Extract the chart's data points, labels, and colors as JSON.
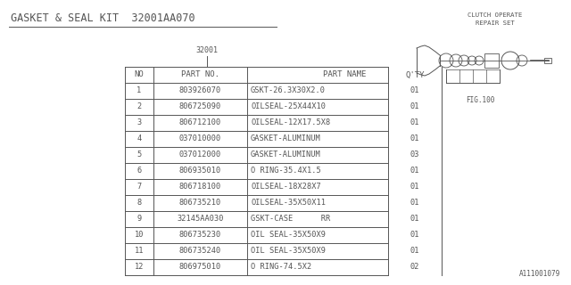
{
  "title": "GASKET & SEAL KIT  32001AA070",
  "part_number_label": "32001",
  "fig_label": "FIG.100",
  "clutch_label_line1": "CLUTCH OPERATE",
  "clutch_label_line2": "REPAIR SET",
  "footer": "A111001079",
  "bg_color": "#ffffff",
  "table_header": [
    "NO",
    "PART NO.",
    "PART NAME",
    "Q'TY"
  ],
  "table_rows": [
    [
      "1",
      "803926070",
      "GSKT-26.3X30X2.0",
      "01"
    ],
    [
      "2",
      "806725090",
      "OILSEAL-25X44X10",
      "01"
    ],
    [
      "3",
      "806712100",
      "OILSEAL-12X17.5X8",
      "01"
    ],
    [
      "4",
      "037010000",
      "GASKET-ALUMINUM",
      "01"
    ],
    [
      "5",
      "037012000",
      "GASKET-ALUMINUM",
      "03"
    ],
    [
      "6",
      "806935010",
      "O RING-35.4X1.5",
      "01"
    ],
    [
      "7",
      "806718100",
      "OILSEAL-18X28X7",
      "01"
    ],
    [
      "8",
      "806735210",
      "OILSEAL-35X50X11",
      "01"
    ],
    [
      "9",
      "32145AA030",
      "GSKT-CASE      RR",
      "01"
    ],
    [
      "10",
      "806735230",
      "OIL SEAL-35X50X9",
      "01"
    ],
    [
      "11",
      "806735240",
      "OIL SEAL-35X50X9",
      "01"
    ],
    [
      "12",
      "806975010",
      "O RING-74.5X2",
      "02"
    ]
  ],
  "text_color": "#555555",
  "line_color": "#555555",
  "font_size_title": 8.5,
  "font_size_table_header": 6.5,
  "font_size_table_row": 6.2,
  "font_size_label": 6.0,
  "font_size_fig": 5.8,
  "font_size_footer": 5.5
}
